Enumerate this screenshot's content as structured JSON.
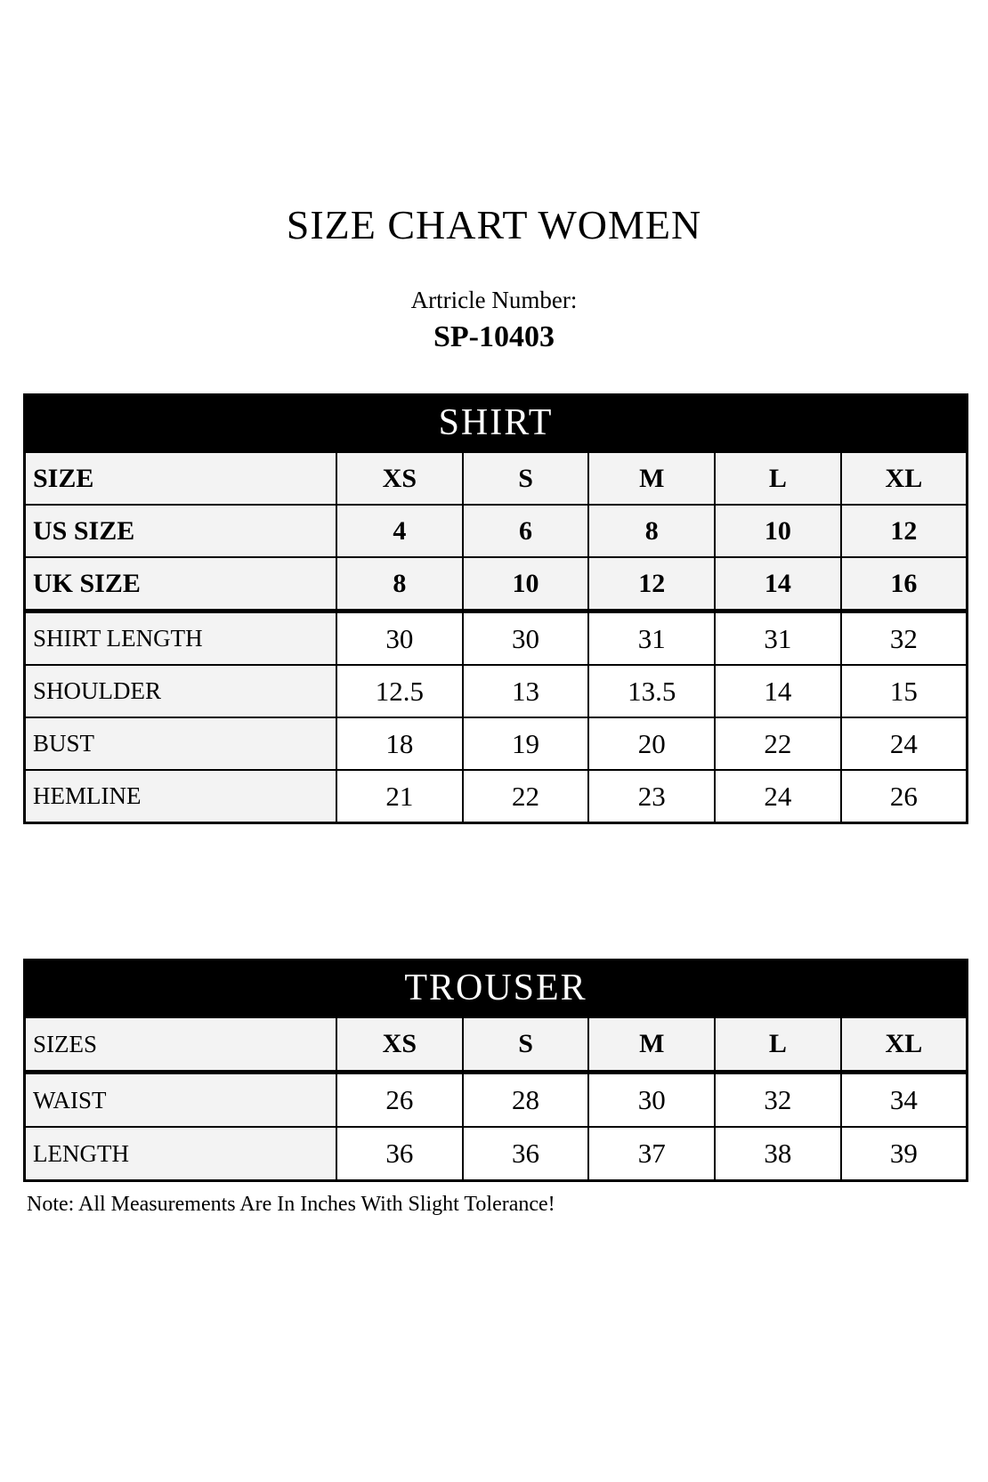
{
  "page": {
    "title": "SIZE CHART WOMEN",
    "article_label": "Artricle Number:",
    "article_number": "SP-10403",
    "note": "Note: All Measurements Are In Inches With Slight Tolerance!"
  },
  "colors": {
    "band_background": "#000000",
    "band_text": "#ffffff",
    "cell_gray": "#f3f3f3",
    "border": "#000000",
    "page_background": "#ffffff"
  },
  "shirt_table": {
    "header": "SHIRT",
    "rows": [
      {
        "label": "SIZE",
        "values": [
          "XS",
          "S",
          "M",
          "L",
          "XL"
        ],
        "label_bold": true,
        "values_bold": true,
        "gray_values": true,
        "thick_bottom": false
      },
      {
        "label": "US SIZE",
        "values": [
          "4",
          "6",
          "8",
          "10",
          "12"
        ],
        "label_bold": true,
        "values_bold": true,
        "gray_values": true,
        "thick_bottom": false
      },
      {
        "label": "UK SIZE",
        "values": [
          "8",
          "10",
          "12",
          "14",
          "16"
        ],
        "label_bold": true,
        "values_bold": true,
        "gray_values": true,
        "thick_bottom": true
      },
      {
        "label": "SHIRT LENGTH",
        "values": [
          "30",
          "30",
          "31",
          "31",
          "32"
        ],
        "label_bold": false,
        "values_bold": false,
        "gray_values": false,
        "thick_bottom": false
      },
      {
        "label": "SHOULDER",
        "values": [
          "12.5",
          "13",
          "13.5",
          "14",
          "15"
        ],
        "label_bold": false,
        "values_bold": false,
        "gray_values": false,
        "thick_bottom": false
      },
      {
        "label": "BUST",
        "values": [
          "18",
          "19",
          "20",
          "22",
          "24"
        ],
        "label_bold": false,
        "values_bold": false,
        "gray_values": false,
        "thick_bottom": false
      },
      {
        "label": "HEMLINE",
        "values": [
          "21",
          "22",
          "23",
          "24",
          "26"
        ],
        "label_bold": false,
        "values_bold": false,
        "gray_values": false,
        "thick_bottom": false
      }
    ]
  },
  "trouser_table": {
    "header": "TROUSER",
    "rows": [
      {
        "label": "SIZES",
        "values": [
          "XS",
          "S",
          "M",
          "L",
          "XL"
        ],
        "label_bold": false,
        "values_bold": true,
        "gray_values": true,
        "thick_bottom": true
      },
      {
        "label": "WAIST",
        "values": [
          "26",
          "28",
          "30",
          "32",
          "34"
        ],
        "label_bold": false,
        "values_bold": false,
        "gray_values": false,
        "thick_bottom": false
      },
      {
        "label": "LENGTH",
        "values": [
          "36",
          "36",
          "37",
          "38",
          "39"
        ],
        "label_bold": false,
        "values_bold": false,
        "gray_values": false,
        "thick_bottom": false
      }
    ]
  }
}
